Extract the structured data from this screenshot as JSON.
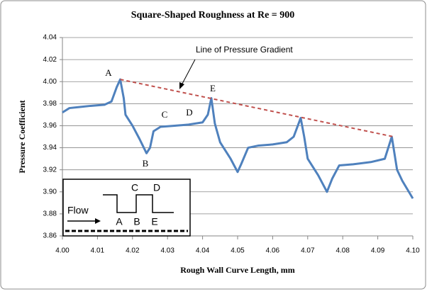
{
  "chart_data": {
    "type": "line",
    "title": "Square-Shaped Roughness  at Re = 900",
    "xlabel": "Rough Wall Curve Length, mm",
    "ylabel": "Pressure Coefficient",
    "xlim": [
      4.0,
      4.1
    ],
    "xticks": [
      {
        "value": 4.0,
        "label": "4.00"
      },
      4.01,
      4.02,
      4.03,
      4.04,
      4.05,
      4.06,
      4.07,
      4.08,
      4.09,
      {
        "value": 4.1,
        "label": "4.10"
      }
    ],
    "ylim": [
      3.86,
      4.04
    ],
    "yticks": [
      3.86,
      3.88,
      {
        "value": 3.9,
        "label": "3.90"
      },
      3.92,
      3.94,
      3.96,
      3.98,
      {
        "value": 4.0,
        "label": "4.00"
      },
      4.02,
      4.04
    ],
    "grid": true,
    "series": [
      {
        "color": "#4f81bd",
        "dashed": false,
        "x": [
          4.0,
          4.002,
          4.005,
          4.008,
          4.012,
          4.014,
          4.0155,
          4.0165,
          4.0175,
          4.018,
          4.02,
          4.022,
          4.024,
          4.025,
          4.026,
          4.028,
          4.032,
          4.036,
          4.04,
          4.0415,
          4.0425,
          4.0435,
          4.045,
          4.048,
          4.05,
          4.051,
          4.053,
          4.056,
          4.06,
          4.064,
          4.066,
          4.068,
          4.069,
          4.07,
          4.073,
          4.0755,
          4.077,
          4.079,
          4.083,
          4.088,
          4.092,
          4.094,
          4.0955,
          4.097,
          4.1
        ],
        "values": [
          3.972,
          3.976,
          3.977,
          3.978,
          3.979,
          3.982,
          3.995,
          4.002,
          3.985,
          3.97,
          3.96,
          3.948,
          3.935,
          3.94,
          3.955,
          3.959,
          3.96,
          3.961,
          3.963,
          3.97,
          3.985,
          3.962,
          3.945,
          3.93,
          3.918,
          3.925,
          3.94,
          3.942,
          3.943,
          3.945,
          3.95,
          3.967,
          3.95,
          3.93,
          3.915,
          3.9,
          3.912,
          3.924,
          3.925,
          3.927,
          3.93,
          3.95,
          3.92,
          3.91,
          3.894
        ]
      },
      {
        "name": "Line of Pressure Gradient",
        "color": "#c0504d",
        "dashed": true,
        "x": [
          4.0165,
          4.0945
        ],
        "values": [
          4.002,
          3.95
        ]
      }
    ],
    "annotations": [
      "A",
      "B",
      "C",
      "D",
      "E"
    ],
    "inset": {
      "flow": "Flow",
      "top_labels": [
        "C",
        "D"
      ],
      "bottom_labels": [
        "A",
        "B",
        "E"
      ]
    }
  }
}
